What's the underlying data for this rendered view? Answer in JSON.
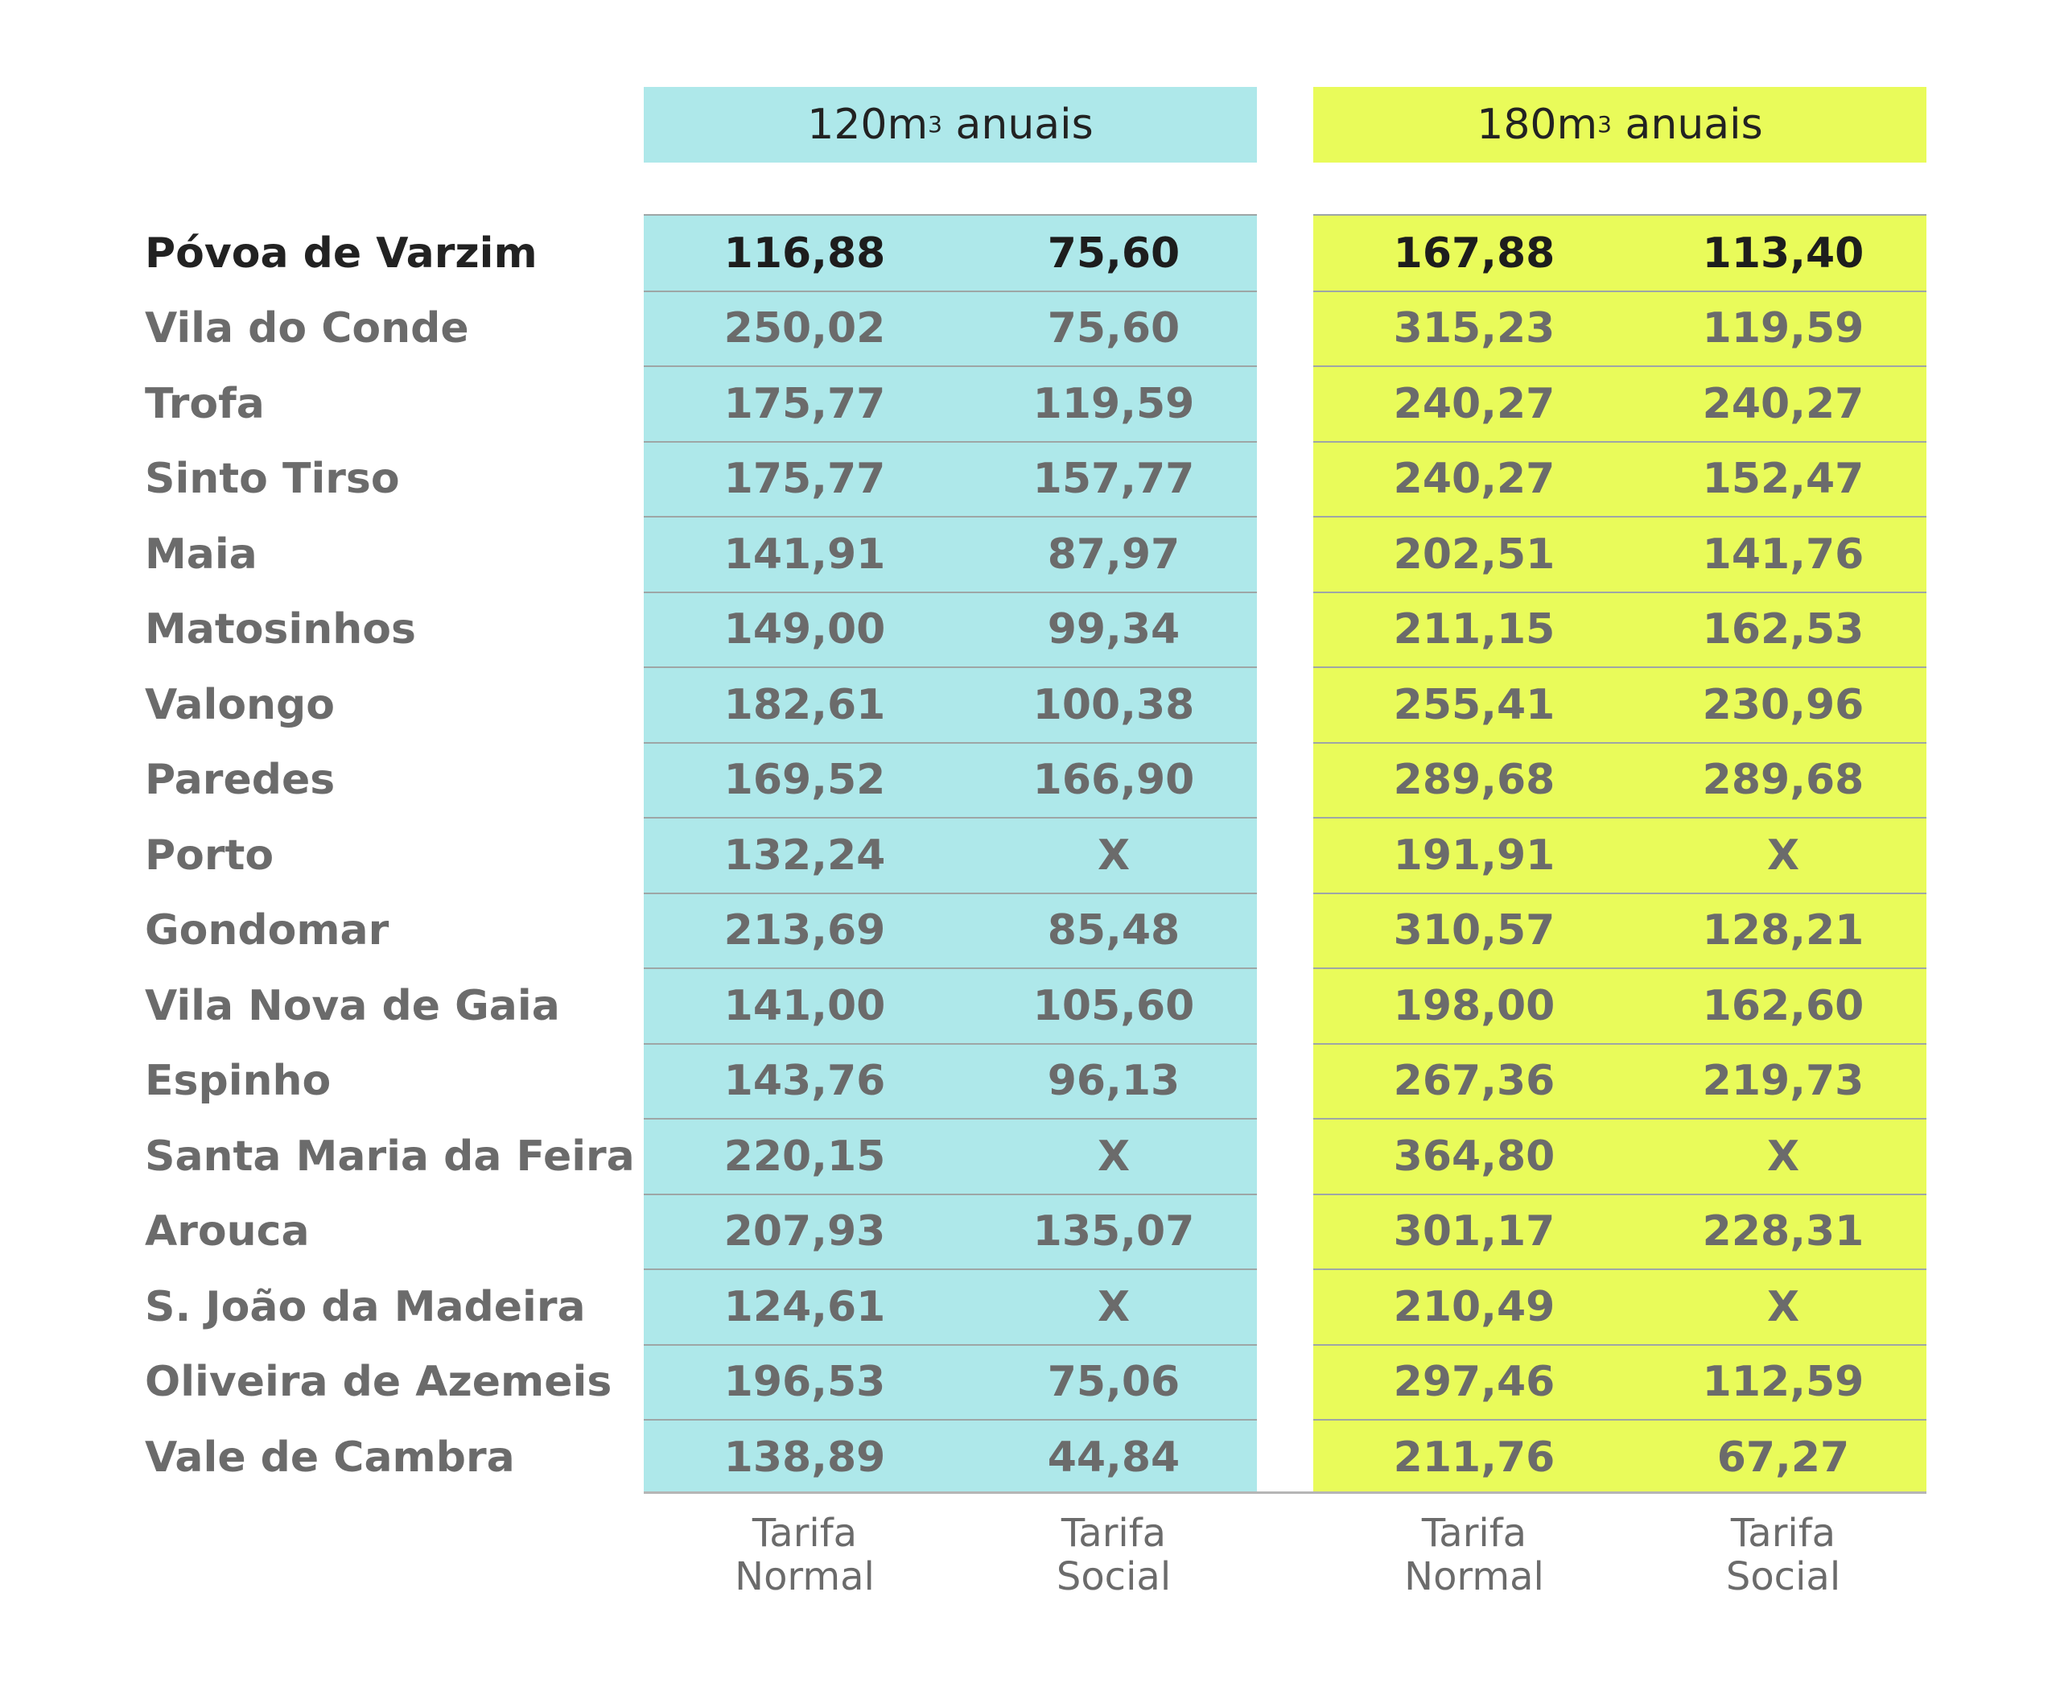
{
  "chart_data": {
    "type": "table",
    "groups": [
      {
        "label": "120m",
        "sup": "3",
        "suffix": " anuais",
        "color": "#aee8ea"
      },
      {
        "label": "180m",
        "sup": "3",
        "suffix": " anuais",
        "color": "#e9fb5a"
      }
    ],
    "subheaders": [
      {
        "line1": "Tarifa",
        "line2": "Normal"
      },
      {
        "line1": "Tarifa",
        "line2": "Social"
      },
      {
        "line1": "Tarifa",
        "line2": "Normal"
      },
      {
        "line1": "Tarifa",
        "line2": "Social"
      }
    ],
    "rows": [
      {
        "name": "Póvoa de Varzim",
        "values": [
          "116,88",
          "75,60",
          "167,88",
          "113,40"
        ],
        "highlight": true
      },
      {
        "name": "Vila do Conde",
        "values": [
          "250,02",
          "75,60",
          "315,23",
          "119,59"
        ]
      },
      {
        "name": "Trofa",
        "values": [
          "175,77",
          "119,59",
          "240,27",
          "240,27"
        ]
      },
      {
        "name": "Sinto Tirso",
        "values": [
          "175,77",
          "157,77",
          "240,27",
          "152,47"
        ]
      },
      {
        "name": "Maia",
        "values": [
          "141,91",
          "87,97",
          "202,51",
          "141,76"
        ]
      },
      {
        "name": "Matosinhos",
        "values": [
          "149,00",
          "99,34",
          "211,15",
          "162,53"
        ]
      },
      {
        "name": "Valongo",
        "values": [
          "182,61",
          "100,38",
          "255,41",
          "230,96"
        ]
      },
      {
        "name": "Paredes",
        "values": [
          "169,52",
          "166,90",
          "289,68",
          "289,68"
        ]
      },
      {
        "name": "Porto",
        "values": [
          "132,24",
          "X",
          "191,91",
          "X"
        ]
      },
      {
        "name": "Gondomar",
        "values": [
          "213,69",
          "85,48",
          "310,57",
          "128,21"
        ]
      },
      {
        "name": "Vila Nova de Gaia",
        "values": [
          "141,00",
          "105,60",
          "198,00",
          "162,60"
        ]
      },
      {
        "name": "Espinho",
        "values": [
          "143,76",
          "96,13",
          "267,36",
          "219,73"
        ]
      },
      {
        "name": "Santa Maria da Feira",
        "values": [
          "220,15",
          "X",
          "364,80",
          "X"
        ]
      },
      {
        "name": "Arouca",
        "values": [
          "207,93",
          "135,07",
          "301,17",
          "228,31"
        ]
      },
      {
        "name": "S. João da Madeira",
        "values": [
          "124,61",
          "X",
          "210,49",
          "X"
        ]
      },
      {
        "name": "Oliveira de Azemeis",
        "values": [
          "196,53",
          "75,06",
          "297,46",
          "112,59"
        ]
      },
      {
        "name": "Vale de Cambra",
        "values": [
          "138,89",
          "44,84",
          "211,76",
          "67,27"
        ]
      }
    ]
  }
}
